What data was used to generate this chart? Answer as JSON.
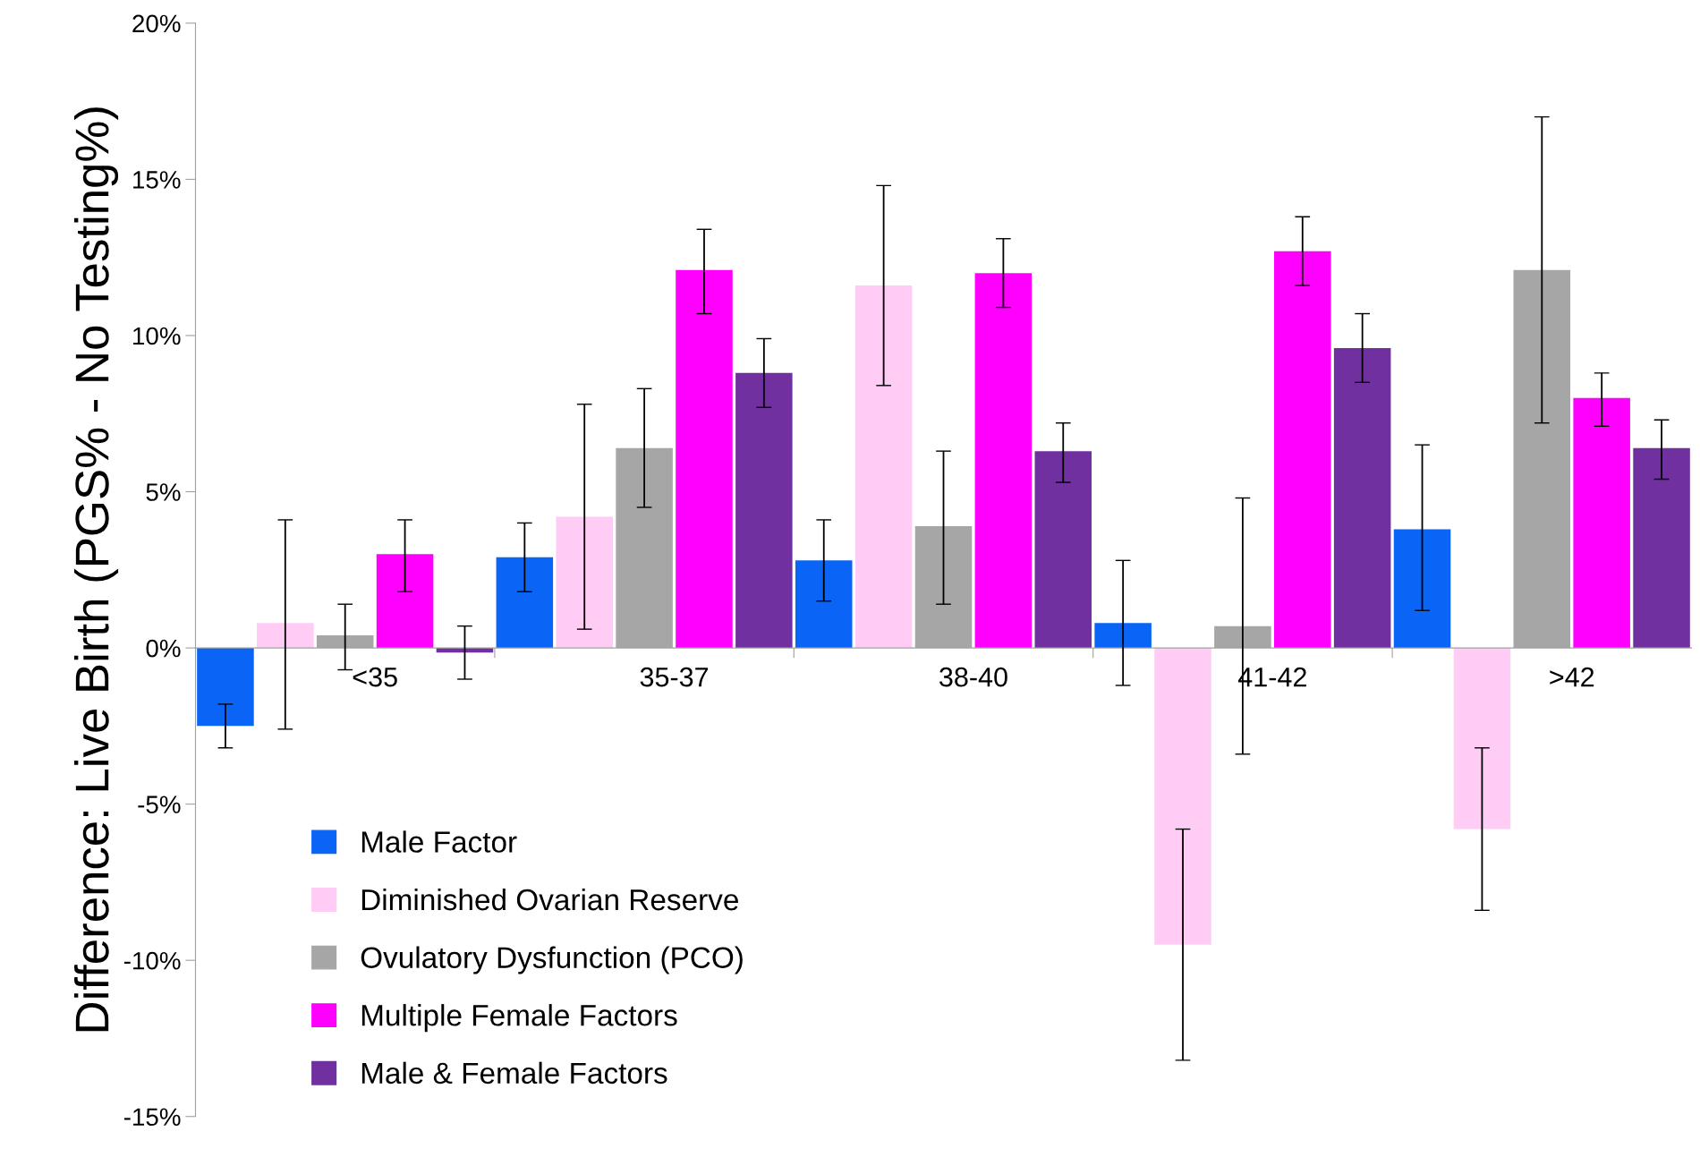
{
  "chart_data": {
    "type": "bar",
    "ylabel": "Difference: Live Birth (PGS% - No Testing%)",
    "categories": [
      "<35",
      "35-37",
      "38-40",
      "41-42",
      ">42"
    ],
    "ylim": [
      -15,
      20
    ],
    "yticks": [
      {
        "value": -15,
        "label": "-15%"
      },
      {
        "value": -10,
        "label": "-10%"
      },
      {
        "value": -5,
        "label": "-5%"
      },
      {
        "value": 0,
        "label": "0%"
      },
      {
        "value": 5,
        "label": "5%"
      },
      {
        "value": 10,
        "label": "10%"
      },
      {
        "value": 15,
        "label": "15%"
      },
      {
        "value": 20,
        "label": "20%"
      }
    ],
    "grid": false,
    "legend": "bottom left",
    "series": [
      {
        "name": "Male Factor",
        "color": "#0a64f5",
        "values": [
          -2.5,
          2.9,
          2.8,
          0.8,
          3.8
        ],
        "errors": [
          [
            -3.2,
            -1.8
          ],
          [
            1.8,
            4.0
          ],
          [
            1.5,
            4.1
          ],
          [
            -1.2,
            2.8
          ],
          [
            1.2,
            6.5
          ]
        ]
      },
      {
        "name": "Diminished Ovarian Reserve",
        "color": "#ffccf5",
        "values": [
          0.8,
          4.2,
          11.6,
          -9.5,
          -5.8
        ],
        "errors": [
          [
            -2.6,
            4.1
          ],
          [
            0.6,
            7.8
          ],
          [
            8.4,
            14.8
          ],
          [
            -13.2,
            -5.8
          ],
          [
            -8.4,
            -3.2
          ]
        ]
      },
      {
        "name": "Ovulatory Dysfunction (PCO)",
        "color": "#a6a6a6",
        "values": [
          0.4,
          6.4,
          3.9,
          0.7,
          12.1
        ],
        "errors": [
          [
            -0.7,
            1.4
          ],
          [
            4.5,
            8.3
          ],
          [
            1.4,
            6.3
          ],
          [
            -3.4,
            4.8
          ],
          [
            7.2,
            17.0
          ]
        ]
      },
      {
        "name": "Multiple Female Factors",
        "color": "#ff00ff",
        "values": [
          3.0,
          12.1,
          12.0,
          12.7,
          8.0
        ],
        "errors": [
          [
            1.8,
            4.1
          ],
          [
            10.7,
            13.4
          ],
          [
            10.9,
            13.1
          ],
          [
            11.6,
            13.8
          ],
          [
            7.1,
            8.8
          ]
        ]
      },
      {
        "name": "Male & Female Factors",
        "color": "#7030a0",
        "values": [
          -0.15,
          8.8,
          6.3,
          9.6,
          6.4
        ],
        "errors": [
          [
            -1.0,
            0.7
          ],
          [
            7.7,
            9.9
          ],
          [
            5.3,
            7.2
          ],
          [
            8.5,
            10.7
          ],
          [
            5.4,
            7.3
          ]
        ]
      }
    ]
  }
}
